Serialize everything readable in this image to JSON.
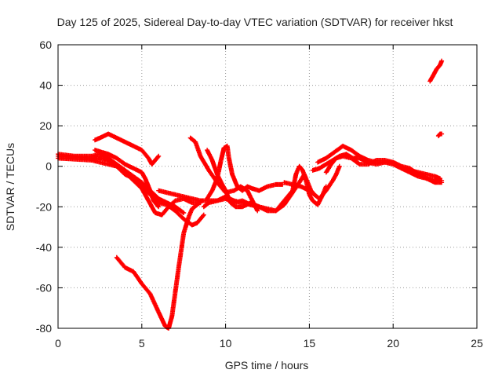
{
  "chart_data": {
    "type": "scatter",
    "title": "Day 125 of 2025, Sidereal Day-to-day VTEC variation (SDTVAR) for receiver hkst",
    "xlabel": "GPS time / hours",
    "ylabel": "SDTVAR / TECUs",
    "xlim": [
      0,
      25
    ],
    "ylim": [
      -80,
      60
    ],
    "xticks": [
      0,
      5,
      10,
      15,
      20,
      25
    ],
    "yticks": [
      -80,
      -60,
      -40,
      -20,
      0,
      20,
      40,
      60
    ],
    "grid": true,
    "marker": "+",
    "color": "#ff0000",
    "series": [
      {
        "name": "trace-1",
        "points": [
          [
            0,
            5
          ],
          [
            1,
            4.5
          ],
          [
            2,
            4
          ],
          [
            2.6,
            4
          ],
          [
            3,
            3
          ],
          [
            3.5,
            0
          ],
          [
            4,
            -4
          ],
          [
            4.5,
            -6
          ],
          [
            5,
            -10
          ],
          [
            5.5,
            -14
          ],
          [
            6,
            -18
          ],
          [
            6.5,
            -19
          ],
          [
            7,
            -22
          ],
          [
            7.5,
            -26
          ],
          [
            8,
            -29
          ],
          [
            8.3,
            -28
          ],
          [
            8.7,
            -24
          ]
        ]
      },
      {
        "name": "trace-2",
        "points": [
          [
            0,
            6
          ],
          [
            1,
            5
          ],
          [
            2,
            5
          ],
          [
            2.5,
            6
          ],
          [
            3,
            4
          ],
          [
            3.5,
            1
          ],
          [
            4,
            -2
          ],
          [
            4.5,
            -5
          ],
          [
            5,
            -8
          ],
          [
            5.5,
            -12
          ],
          [
            6,
            -16
          ],
          [
            6.5,
            -18
          ],
          [
            7,
            -20
          ],
          [
            7.5,
            -23
          ]
        ]
      },
      {
        "name": "trace-3",
        "points": [
          [
            0,
            4
          ],
          [
            1,
            3.5
          ],
          [
            2,
            3
          ],
          [
            2.5,
            2
          ],
          [
            3,
            1
          ],
          [
            3.5,
            0
          ],
          [
            4,
            -3
          ],
          [
            4.5,
            -7
          ],
          [
            5,
            -11
          ],
          [
            5.4,
            -17
          ],
          [
            5.8,
            -23
          ],
          [
            6.2,
            -24
          ],
          [
            6.6,
            -20
          ],
          [
            7,
            -17
          ],
          [
            7.5,
            -16
          ],
          [
            8,
            -18
          ],
          [
            8.5,
            -18
          ]
        ]
      },
      {
        "name": "trace-4",
        "points": [
          [
            2.2,
            8
          ],
          [
            2.6,
            7
          ],
          [
            3,
            6
          ],
          [
            3.5,
            4
          ],
          [
            4,
            1
          ],
          [
            4.5,
            -1
          ],
          [
            5,
            -3
          ],
          [
            5.2,
            -6
          ],
          [
            5.5,
            -12
          ],
          [
            5.7,
            -17
          ],
          [
            6,
            -20
          ]
        ]
      },
      {
        "name": "trace-5",
        "points": [
          [
            2.2,
            13
          ],
          [
            2.5,
            14
          ],
          [
            3,
            16
          ],
          [
            3.5,
            14
          ],
          [
            4,
            12
          ],
          [
            4.5,
            10
          ],
          [
            5,
            8
          ],
          [
            5.4,
            4
          ],
          [
            5.6,
            1
          ],
          [
            5.8,
            3
          ],
          [
            6,
            5
          ]
        ]
      },
      {
        "name": "trace-6",
        "points": [
          [
            3.5,
            -45
          ],
          [
            4,
            -50
          ],
          [
            4.5,
            -52
          ],
          [
            5,
            -58
          ],
          [
            5.5,
            -63
          ],
          [
            6,
            -72
          ],
          [
            6.4,
            -79
          ],
          [
            6.6,
            -80
          ],
          [
            6.8,
            -74
          ],
          [
            7,
            -62
          ],
          [
            7.2,
            -50
          ],
          [
            7.5,
            -33
          ],
          [
            7.8,
            -25
          ],
          [
            8,
            -21
          ],
          [
            8.3,
            -19
          ],
          [
            8.6,
            -17
          ]
        ]
      },
      {
        "name": "trace-7",
        "points": [
          [
            6,
            -12
          ],
          [
            6.5,
            -13
          ],
          [
            7,
            -14
          ],
          [
            7.5,
            -15
          ],
          [
            8,
            -16
          ],
          [
            8.5,
            -17
          ],
          [
            9,
            -17
          ],
          [
            9.5,
            -17
          ],
          [
            10,
            -15
          ],
          [
            10.5,
            -17
          ],
          [
            11,
            -18
          ],
          [
            11.5,
            -19
          ],
          [
            12,
            -20
          ]
        ]
      },
      {
        "name": "trace-8",
        "points": [
          [
            7.9,
            14
          ],
          [
            8.2,
            12
          ],
          [
            8.5,
            5
          ],
          [
            9,
            -2
          ],
          [
            9.5,
            -8
          ],
          [
            10,
            -13
          ],
          [
            10.5,
            -12
          ],
          [
            10.9,
            -10
          ],
          [
            11.3,
            -12
          ],
          [
            11.6,
            -17
          ],
          [
            11.9,
            -22
          ]
        ]
      },
      {
        "name": "trace-9",
        "points": [
          [
            8.9,
            8
          ],
          [
            9.2,
            3
          ],
          [
            9.5,
            -4
          ],
          [
            9.8,
            -9
          ],
          [
            10,
            -12
          ],
          [
            10.3,
            -18
          ],
          [
            10.6,
            -20
          ],
          [
            11,
            -20
          ],
          [
            11.5,
            -18
          ],
          [
            12,
            -20
          ],
          [
            12.5,
            -22
          ],
          [
            13,
            -22
          ],
          [
            13.5,
            -19
          ],
          [
            14,
            -13
          ],
          [
            14.4,
            -8
          ],
          [
            14.7,
            -4
          ],
          [
            14.9,
            -8
          ],
          [
            15.1,
            -12
          ],
          [
            15.3,
            -14
          ]
        ]
      },
      {
        "name": "trace-10",
        "points": [
          [
            8.9,
            -16
          ],
          [
            9.2,
            -12
          ],
          [
            9.5,
            -6
          ],
          [
            9.7,
            2
          ],
          [
            9.9,
            9
          ],
          [
            10.1,
            10
          ],
          [
            10.2,
            4
          ],
          [
            10.4,
            -4
          ],
          [
            10.7,
            -10
          ],
          [
            11,
            -12
          ],
          [
            11.3,
            -10
          ],
          [
            11.6,
            -11
          ],
          [
            12,
            -12
          ],
          [
            12.5,
            -10
          ],
          [
            13,
            -9
          ],
          [
            13.4,
            -9
          ]
        ]
      },
      {
        "name": "trace-11",
        "points": [
          [
            8.7,
            -20
          ],
          [
            9,
            -18
          ],
          [
            9.5,
            -17
          ],
          [
            10,
            -16
          ],
          [
            10.5,
            -18
          ],
          [
            11,
            -17
          ],
          [
            11.5,
            -19
          ],
          [
            12,
            -20
          ],
          [
            12.5,
            -21
          ],
          [
            13,
            -22
          ],
          [
            13.5,
            -17
          ],
          [
            14,
            -12
          ],
          [
            14.2,
            -4
          ],
          [
            14.4,
            0
          ],
          [
            14.6,
            -2
          ],
          [
            14.8,
            -7
          ],
          [
            15,
            -14
          ],
          [
            15.2,
            -17
          ],
          [
            15.5,
            -19
          ],
          [
            15.8,
            -14
          ],
          [
            16,
            -10
          ]
        ]
      },
      {
        "name": "trace-12",
        "points": [
          [
            13.5,
            -8
          ],
          [
            14,
            -9
          ],
          [
            14.5,
            -10
          ],
          [
            15,
            -12
          ],
          [
            15.3,
            -14
          ],
          [
            15.6,
            -16
          ],
          [
            16,
            -12
          ],
          [
            16.4,
            -7
          ],
          [
            16.6,
            -4
          ],
          [
            16.8,
            0
          ]
        ]
      },
      {
        "name": "trace-13",
        "points": [
          [
            15.5,
            2
          ],
          [
            16,
            4
          ],
          [
            16.5,
            7
          ],
          [
            17,
            10
          ],
          [
            17.5,
            8
          ],
          [
            18,
            5
          ],
          [
            18.5,
            3
          ],
          [
            19,
            2
          ],
          [
            19.5,
            2
          ],
          [
            20,
            1
          ],
          [
            20.5,
            -1
          ],
          [
            21,
            -2
          ],
          [
            21.5,
            -3
          ],
          [
            22,
            -4
          ],
          [
            22.5,
            -5
          ],
          [
            22.8,
            -6
          ]
        ]
      },
      {
        "name": "trace-14",
        "points": [
          [
            15.2,
            -2
          ],
          [
            15.6,
            -1
          ],
          [
            16,
            1
          ],
          [
            16.4,
            3
          ],
          [
            16.8,
            5
          ],
          [
            17.2,
            6
          ],
          [
            17.6,
            4
          ],
          [
            18,
            4
          ],
          [
            18.5,
            2
          ],
          [
            19,
            1
          ],
          [
            19.5,
            2
          ],
          [
            20,
            2
          ],
          [
            20.5,
            0
          ],
          [
            21,
            -1
          ],
          [
            21.5,
            -4
          ],
          [
            22,
            -6
          ],
          [
            22.5,
            -7
          ],
          [
            22.9,
            -7
          ]
        ]
      },
      {
        "name": "trace-15",
        "points": [
          [
            16,
            -3
          ],
          [
            16.3,
            1
          ],
          [
            16.6,
            4
          ],
          [
            17,
            5
          ],
          [
            17.5,
            4
          ],
          [
            18,
            1
          ],
          [
            18.5,
            1
          ],
          [
            19,
            3
          ],
          [
            19.5,
            3
          ],
          [
            20,
            2
          ],
          [
            20.5,
            -1
          ],
          [
            21,
            -3
          ],
          [
            21.5,
            -5
          ],
          [
            22,
            -6
          ],
          [
            22.5,
            -8
          ],
          [
            22.9,
            -8
          ]
        ]
      },
      {
        "name": "trace-16",
        "points": [
          [
            22.2,
            42
          ],
          [
            22.4,
            45
          ],
          [
            22.6,
            48
          ],
          [
            22.8,
            50
          ],
          [
            22.9,
            52
          ]
        ]
      },
      {
        "name": "trace-17",
        "points": [
          [
            22.7,
            15
          ],
          [
            22.8,
            16
          ],
          [
            22.9,
            16
          ]
        ]
      }
    ]
  }
}
